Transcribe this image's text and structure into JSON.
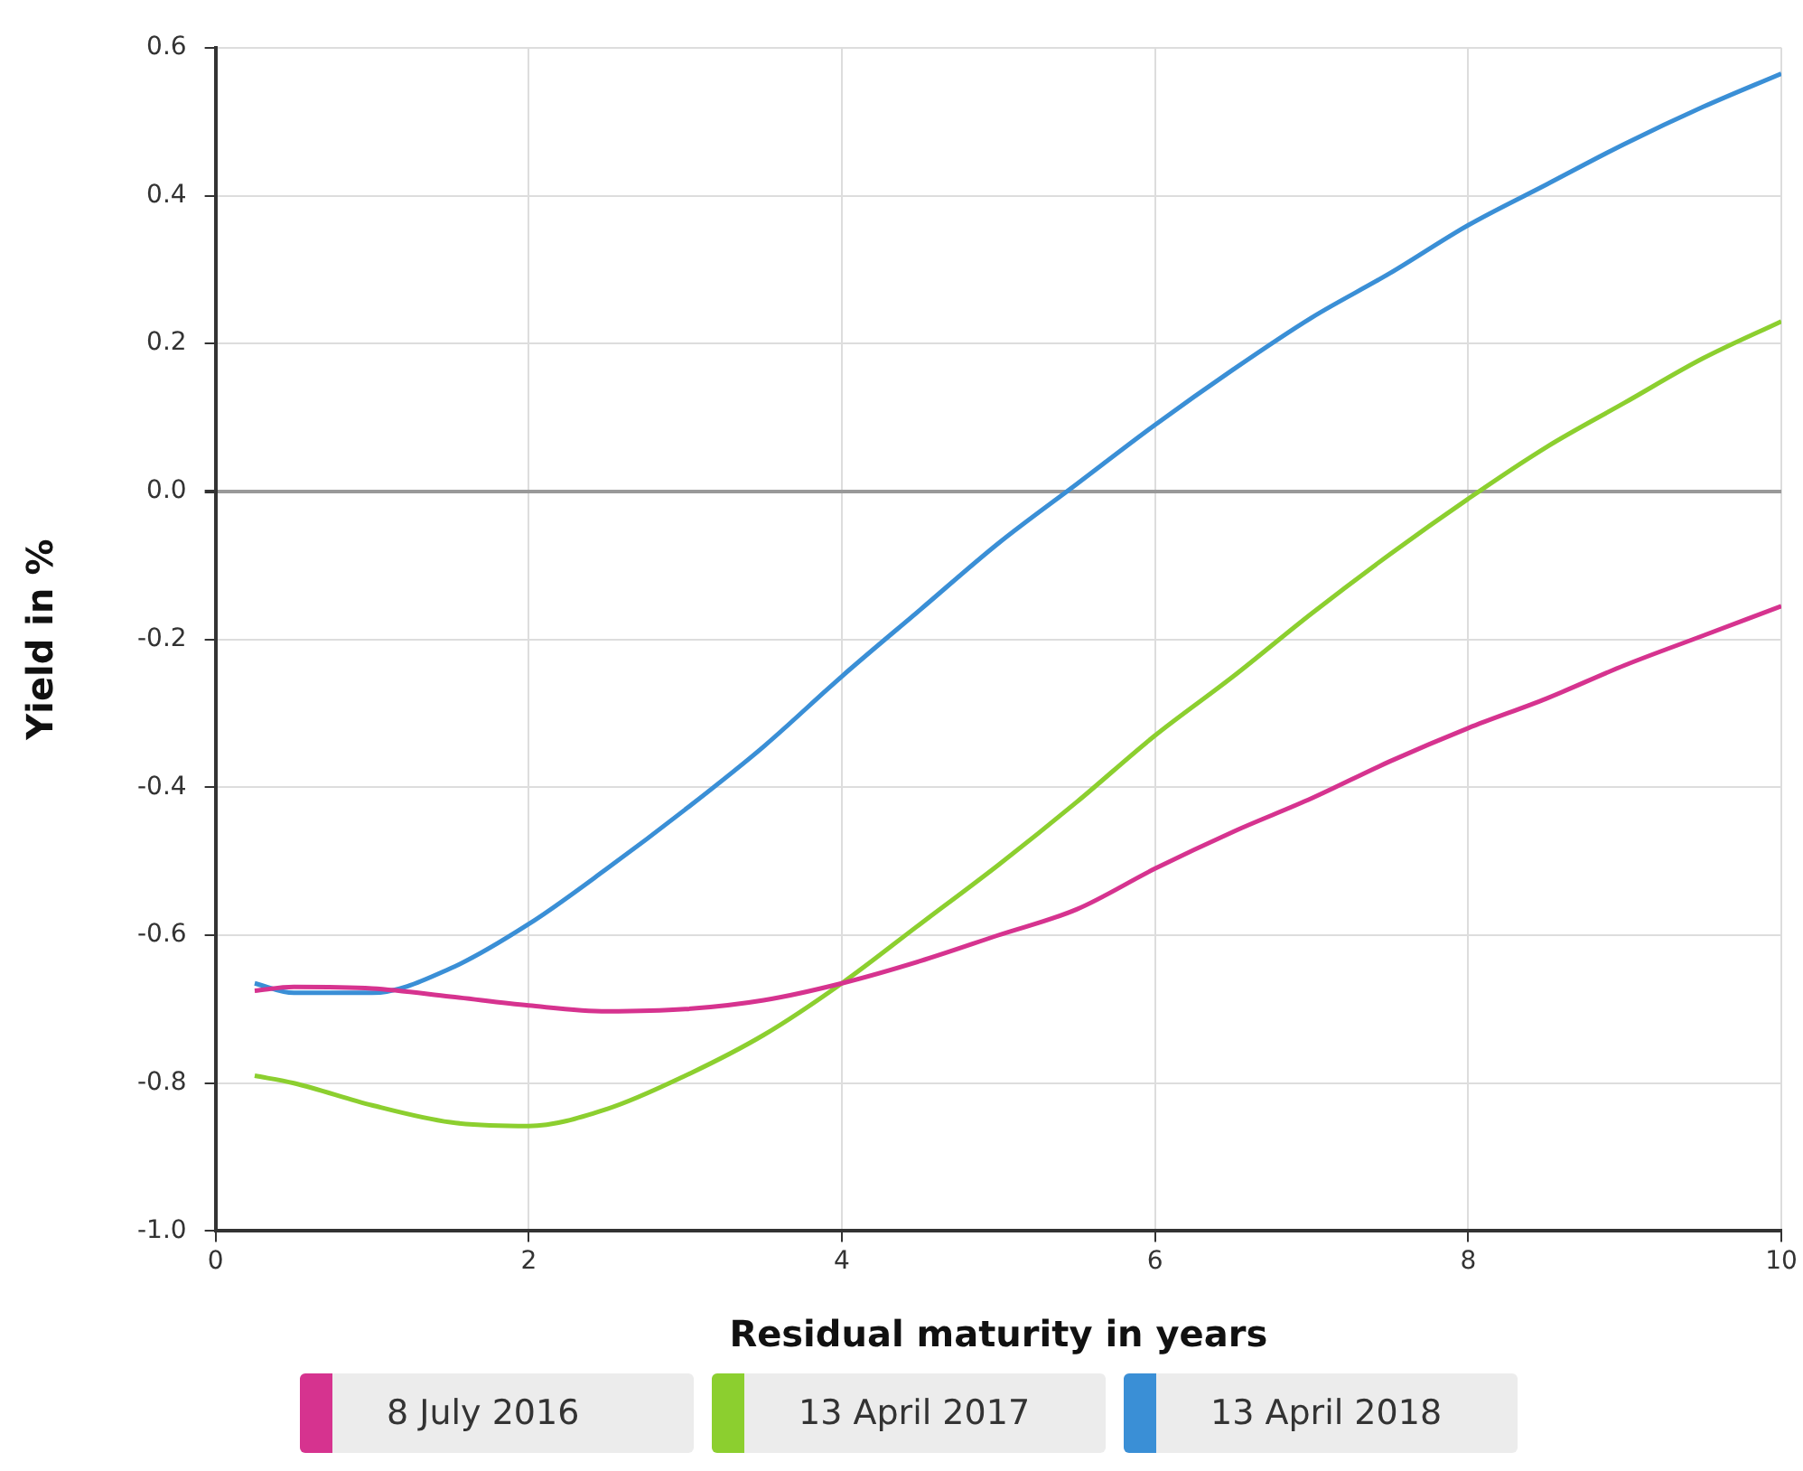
{
  "chart_data": {
    "type": "line",
    "xlabel": "Residual maturity in years",
    "ylabel": "Yield in %",
    "x": [
      0.25,
      0.5,
      1,
      1.5,
      2,
      2.5,
      3,
      3.5,
      4,
      4.5,
      5,
      5.5,
      6,
      6.5,
      7,
      7.5,
      8,
      8.5,
      9,
      9.5,
      10
    ],
    "series": [
      {
        "name": "8 July 2016",
        "color": "#d6338f",
        "values": [
          -0.675,
          -0.67,
          -0.672,
          -0.683,
          -0.695,
          -0.703,
          -0.7,
          -0.688,
          -0.665,
          -0.635,
          -0.6,
          -0.565,
          -0.51,
          -0.46,
          -0.415,
          -0.365,
          -0.32,
          -0.28,
          -0.235,
          -0.195,
          -0.155
        ]
      },
      {
        "name": "13 April 2017",
        "color": "#8ccf2f",
        "values": [
          -0.79,
          -0.8,
          -0.83,
          -0.853,
          -0.858,
          -0.835,
          -0.79,
          -0.735,
          -0.665,
          -0.585,
          -0.505,
          -0.42,
          -0.33,
          -0.25,
          -0.165,
          -0.085,
          -0.01,
          0.06,
          0.12,
          0.18,
          0.23
        ]
      },
      {
        "name": "13 April 2018",
        "color": "#3a8fd6",
        "values": [
          -0.665,
          -0.678,
          -0.678,
          -0.645,
          -0.585,
          -0.51,
          -0.43,
          -0.345,
          -0.25,
          -0.16,
          -0.07,
          0.01,
          0.09,
          0.165,
          0.235,
          0.295,
          0.36,
          0.415,
          0.47,
          0.52,
          0.565
        ]
      }
    ],
    "xlim": [
      0,
      10
    ],
    "xticks": [
      0,
      2,
      4,
      6,
      8,
      10
    ],
    "ylim": [
      -1.0,
      0.6
    ],
    "yticks": [
      {
        "value": -1.0,
        "label": "-1.0"
      },
      {
        "value": -0.8,
        "label": "-0.8"
      },
      {
        "value": -0.6,
        "label": "-0.6"
      },
      {
        "value": -0.4,
        "label": "-0.4"
      },
      {
        "value": -0.2,
        "label": "-0.2"
      },
      {
        "value": 0,
        "label": "0.0"
      },
      {
        "value": 0.2,
        "label": "0.2"
      },
      {
        "value": 0.4,
        "label": "0.4"
      },
      {
        "value": 0.6,
        "label": "0.6"
      }
    ],
    "grid": true,
    "legend": "bottom",
    "marker": "none",
    "line_style": "solid"
  }
}
